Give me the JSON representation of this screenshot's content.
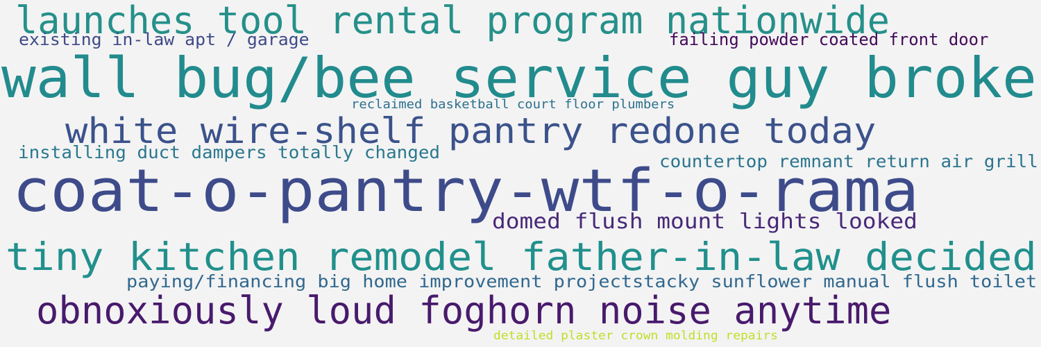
{
  "words": [
    {
      "text": "launches tool rental program nationwide",
      "color": "#26908a"
    },
    {
      "text": "existing in-law apt / garage",
      "color": "#3f4a88"
    },
    {
      "text": "failing powder coated front door",
      "color": "#44095a"
    },
    {
      "text": "wall bug/bee service guy broke",
      "color": "#228b8d"
    },
    {
      "text": "reclaimed basketball court floor plumbers",
      "color": "#2d708e"
    },
    {
      "text": "white wire-shelf pantry redone today",
      "color": "#3b528b"
    },
    {
      "text": "installing duct dampers totally changed",
      "color": "#2a788e"
    },
    {
      "text": "countertop remnant return air grill",
      "color": "#2b758e"
    },
    {
      "text": "coat-o-pantry-wtf-o-rama",
      "color": "#3e4b8a"
    },
    {
      "text": "domed flush mount lights looked",
      "color": "#482878"
    },
    {
      "text": "tiny kitchen remodel father-in-law decided",
      "color": "#21908c"
    },
    {
      "text": "paying/financing big home improvement projectstacky sunflower manual flush toilet",
      "color": "#31688e"
    },
    {
      "text": "obnoxiously loud foghorn noise anytime",
      "color": "#481a6c"
    },
    {
      "text": "detailed plaster crown molding repairs",
      "color": "#bddf26"
    }
  ]
}
